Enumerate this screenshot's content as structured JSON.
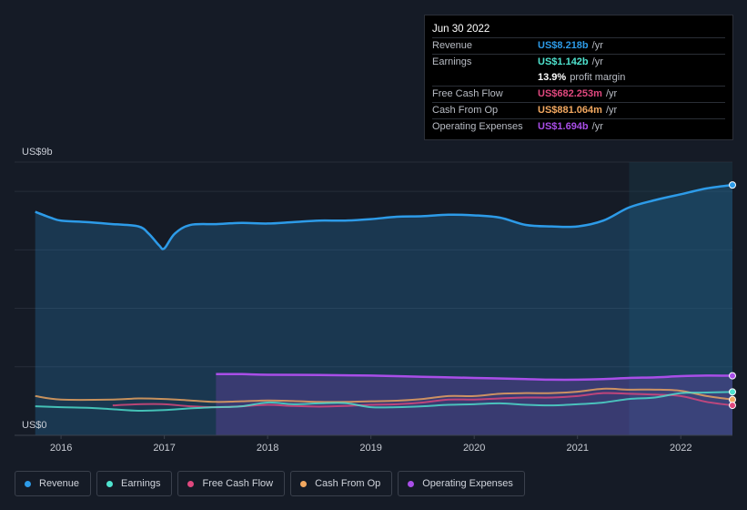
{
  "tooltip": {
    "date": "Jun 30 2022",
    "rows": [
      {
        "label": "Revenue",
        "value": "US$8.218b",
        "unit": "/yr",
        "color": "#2d9be8"
      },
      {
        "label": "Earnings",
        "value": "US$1.142b",
        "unit": "/yr",
        "color": "#4fe3cf"
      },
      {
        "label": "",
        "value": "13.9%",
        "unit": "profit margin",
        "color": "#ffffff"
      },
      {
        "label": "Free Cash Flow",
        "value": "US$682.253m",
        "unit": "/yr",
        "color": "#e0487e"
      },
      {
        "label": "Cash From Op",
        "value": "US$881.064m",
        "unit": "/yr",
        "color": "#f2a860"
      },
      {
        "label": "Operating Expenses",
        "value": "US$1.694b",
        "unit": "/yr",
        "color": "#a94ee8"
      }
    ]
  },
  "legend": [
    {
      "label": "Revenue",
      "color": "#2d9be8"
    },
    {
      "label": "Earnings",
      "color": "#4fe3cf"
    },
    {
      "label": "Free Cash Flow",
      "color": "#e0487e"
    },
    {
      "label": "Cash From Op",
      "color": "#f2a860"
    },
    {
      "label": "Operating Expenses",
      "color": "#a94ee8"
    }
  ],
  "chart_data": {
    "type": "area",
    "ylabel_top": "US$9b",
    "ylabel_bottom": "US$0",
    "ylim": [
      0,
      9
    ],
    "xlim": [
      2015.55,
      2022.5
    ],
    "x_ticks": [
      2016,
      2017,
      2018,
      2019,
      2020,
      2021,
      2022
    ],
    "x_tick_labels": [
      "2016",
      "2017",
      "2018",
      "2019",
      "2020",
      "2021",
      "2022"
    ],
    "highlight_start": 2021.5,
    "series": [
      {
        "name": "Revenue",
        "color": "#2d9be8",
        "fill": true,
        "x": [
          2015.75,
          2015.9,
          2016.0,
          2016.25,
          2016.5,
          2016.75,
          2016.85,
          2016.95,
          2017.0,
          2017.1,
          2017.25,
          2017.5,
          2017.75,
          2018.0,
          2018.25,
          2018.5,
          2018.75,
          2019.0,
          2019.25,
          2019.5,
          2019.75,
          2020.0,
          2020.25,
          2020.5,
          2020.75,
          2021.0,
          2021.25,
          2021.5,
          2021.75,
          2022.0,
          2022.25,
          2022.5
        ],
        "y": [
          7.3,
          7.1,
          7.0,
          6.95,
          6.88,
          6.8,
          6.55,
          6.15,
          6.05,
          6.55,
          6.85,
          6.88,
          6.92,
          6.9,
          6.95,
          7.0,
          7.0,
          7.05,
          7.13,
          7.15,
          7.2,
          7.18,
          7.1,
          6.85,
          6.8,
          6.8,
          7.0,
          7.45,
          7.7,
          7.9,
          8.1,
          8.218
        ]
      },
      {
        "name": "Operating Expenses",
        "color": "#a94ee8",
        "fill": true,
        "x": [
          2017.5,
          2017.75,
          2018.0,
          2018.5,
          2019.0,
          2019.5,
          2020.0,
          2020.5,
          2020.75,
          2021.0,
          2021.25,
          2021.5,
          2021.75,
          2022.0,
          2022.25,
          2022.5
        ],
        "y": [
          1.75,
          1.75,
          1.73,
          1.72,
          1.7,
          1.66,
          1.62,
          1.58,
          1.56,
          1.56,
          1.58,
          1.62,
          1.64,
          1.68,
          1.7,
          1.694
        ]
      },
      {
        "name": "Cash From Op",
        "color": "#f2a860",
        "fill": false,
        "x": [
          2015.75,
          2016.0,
          2016.5,
          2016.75,
          2017.0,
          2017.25,
          2017.5,
          2017.75,
          2018.0,
          2018.25,
          2018.5,
          2018.75,
          2019.0,
          2019.25,
          2019.5,
          2019.75,
          2020.0,
          2020.25,
          2020.5,
          2020.75,
          2021.0,
          2021.25,
          2021.5,
          2021.75,
          2022.0,
          2022.25,
          2022.5
        ],
        "y": [
          1.0,
          0.88,
          0.88,
          0.92,
          0.9,
          0.85,
          0.8,
          0.82,
          0.85,
          0.83,
          0.8,
          0.8,
          0.82,
          0.84,
          0.9,
          1.0,
          1.0,
          1.08,
          1.1,
          1.1,
          1.15,
          1.25,
          1.22,
          1.22,
          1.18,
          1.0,
          0.881
        ]
      },
      {
        "name": "Free Cash Flow",
        "color": "#e0487e",
        "fill": false,
        "x": [
          2016.5,
          2016.75,
          2017.0,
          2017.25,
          2017.5,
          2017.75,
          2018.0,
          2018.25,
          2018.5,
          2018.75,
          2019.0,
          2019.25,
          2019.5,
          2019.75,
          2020.0,
          2020.25,
          2020.5,
          2020.75,
          2021.0,
          2021.25,
          2021.5,
          2021.75,
          2022.0,
          2022.25,
          2022.5
        ],
        "y": [
          0.68,
          0.72,
          0.72,
          0.65,
          0.62,
          0.65,
          0.7,
          0.66,
          0.64,
          0.66,
          0.7,
          0.72,
          0.78,
          0.88,
          0.88,
          0.92,
          0.95,
          0.95,
          1.0,
          1.1,
          1.08,
          1.05,
          1.0,
          0.8,
          0.682
        ]
      },
      {
        "name": "Earnings",
        "color": "#4fe3cf",
        "fill": false,
        "x": [
          2015.75,
          2016.0,
          2016.25,
          2016.5,
          2016.75,
          2017.0,
          2017.25,
          2017.5,
          2017.75,
          2018.0,
          2018.25,
          2018.5,
          2018.75,
          2019.0,
          2019.25,
          2019.5,
          2019.75,
          2020.0,
          2020.25,
          2020.5,
          2020.75,
          2021.0,
          2021.25,
          2021.5,
          2021.75,
          2022.0,
          2022.25,
          2022.5
        ],
        "y": [
          0.65,
          0.62,
          0.6,
          0.55,
          0.5,
          0.52,
          0.58,
          0.62,
          0.65,
          0.78,
          0.72,
          0.75,
          0.76,
          0.62,
          0.62,
          0.65,
          0.7,
          0.72,
          0.75,
          0.7,
          0.68,
          0.72,
          0.78,
          0.9,
          0.95,
          1.1,
          1.12,
          1.142
        ]
      }
    ]
  }
}
